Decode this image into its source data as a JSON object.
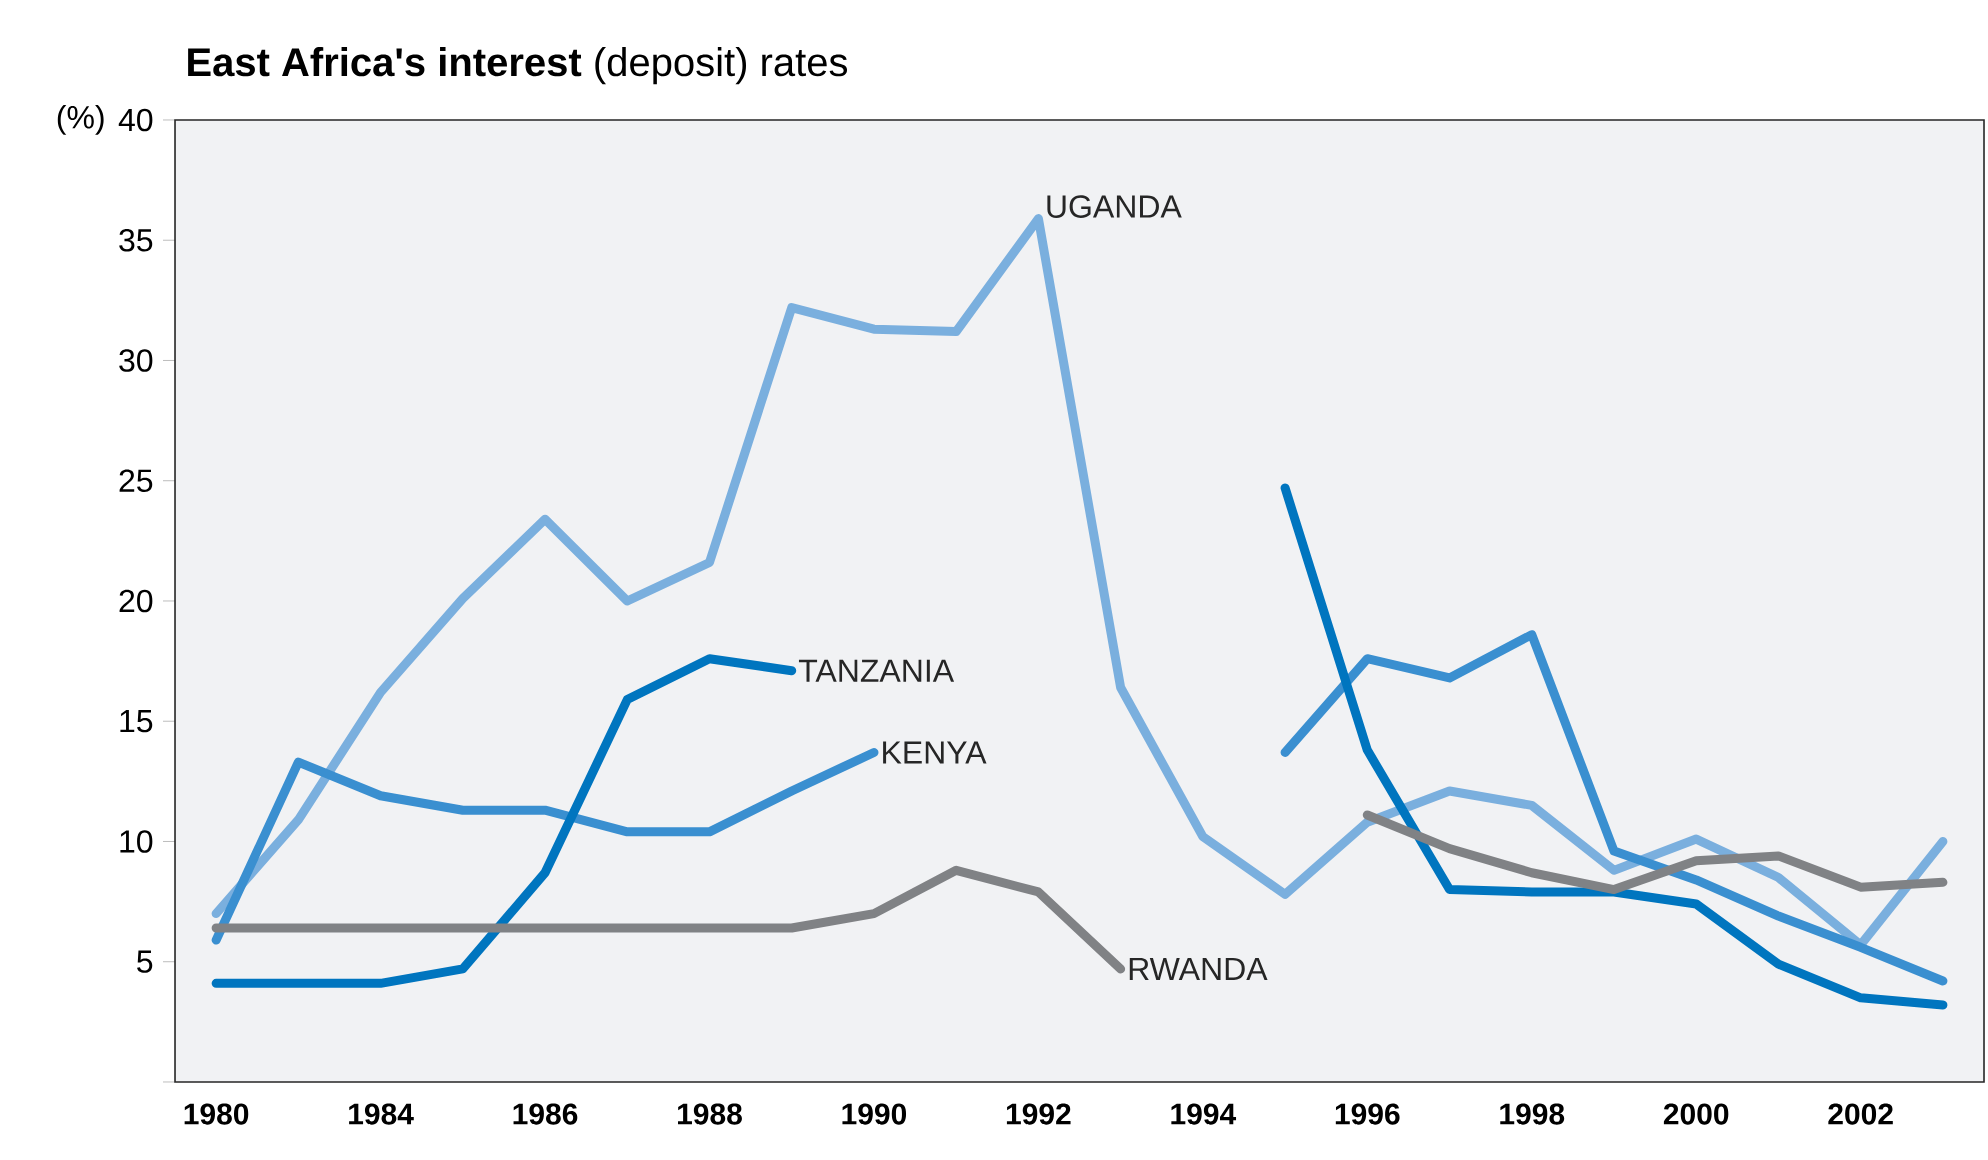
{
  "chart_data": {
    "type": "line",
    "title": "**East Africa's interest** (deposit) rates",
    "ylabel": "(%)",
    "categories": [
      "1980",
      null,
      "1984",
      null,
      "1986",
      null,
      "1988",
      null,
      "1990",
      null,
      "1992",
      null,
      "1994",
      null,
      "1996",
      null,
      "1998",
      null,
      "2000",
      null,
      "2002",
      null
    ],
    "ylim": [
      0,
      40
    ],
    "yticks": [
      {
        "value": 0,
        "label": null
      },
      5,
      10,
      15,
      20,
      25,
      30,
      35,
      40
    ],
    "series": [
      {
        "name": "UGANDA",
        "color": "#7aafde",
        "values": [
          7.0,
          10.9,
          16.2,
          20.1,
          23.4,
          20.0,
          21.6,
          32.2,
          31.3,
          31.2,
          35.9,
          16.4,
          10.2,
          7.8,
          10.8,
          12.1,
          11.5,
          8.8,
          10.1,
          8.5,
          5.7,
          10.0
        ]
      },
      {
        "name": "KENYA",
        "color": "#3a8fd0",
        "values": [
          5.9,
          13.3,
          11.9,
          11.3,
          11.3,
          10.4,
          10.4,
          12.1,
          13.7,
          null,
          null,
          null,
          null,
          13.7,
          17.6,
          16.8,
          18.6,
          9.6,
          8.4,
          6.9,
          5.6,
          4.2
        ]
      },
      {
        "name": "TANZANIA",
        "color": "#0075bf",
        "values": [
          4.1,
          4.1,
          4.1,
          4.7,
          8.7,
          15.9,
          17.6,
          17.1,
          null,
          null,
          null,
          null,
          null,
          24.7,
          13.8,
          8.0,
          7.9,
          7.9,
          7.4,
          4.9,
          3.5,
          3.2
        ]
      },
      {
        "name": "RWANDA",
        "color": "#808285",
        "values": [
          6.4,
          6.4,
          6.4,
          6.4,
          6.4,
          6.4,
          6.4,
          6.4,
          7.0,
          8.8,
          7.9,
          4.7,
          null,
          null,
          11.1,
          9.7,
          8.7,
          8.0,
          9.2,
          9.4,
          8.1,
          8.3
        ]
      }
    ]
  }
}
